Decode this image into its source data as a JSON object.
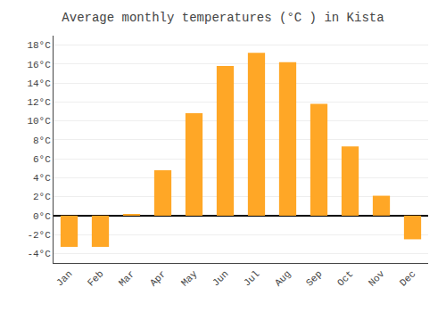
{
  "chart_data": {
    "type": "bar",
    "title": "Average monthly temperatures (°C ) in Kista",
    "categories": [
      "Jan",
      "Feb",
      "Mar",
      "Apr",
      "May",
      "Jun",
      "Jul",
      "Aug",
      "Sep",
      "Oct",
      "Nov",
      "Dec"
    ],
    "values": [
      -3.3,
      -3.3,
      0.1,
      4.8,
      10.8,
      15.8,
      17.2,
      16.2,
      11.8,
      7.3,
      2.1,
      -2.5
    ],
    "color": "#FFA726",
    "ylim": [
      -5,
      19
    ],
    "yticks": [
      {
        "value": -4,
        "label": "-4°C"
      },
      {
        "value": -2,
        "label": "-2°C"
      },
      {
        "value": 0,
        "label": "0°C"
      },
      {
        "value": 2,
        "label": "2°C"
      },
      {
        "value": 4,
        "label": "4°C"
      },
      {
        "value": 6,
        "label": "6°C"
      },
      {
        "value": 8,
        "label": "8°C"
      },
      {
        "value": 10,
        "label": "10°C"
      },
      {
        "value": 12,
        "label": "12°C"
      },
      {
        "value": 14,
        "label": "14°C"
      },
      {
        "value": 16,
        "label": "16°C"
      },
      {
        "value": 18,
        "label": "18°C"
      }
    ],
    "grid": true
  }
}
